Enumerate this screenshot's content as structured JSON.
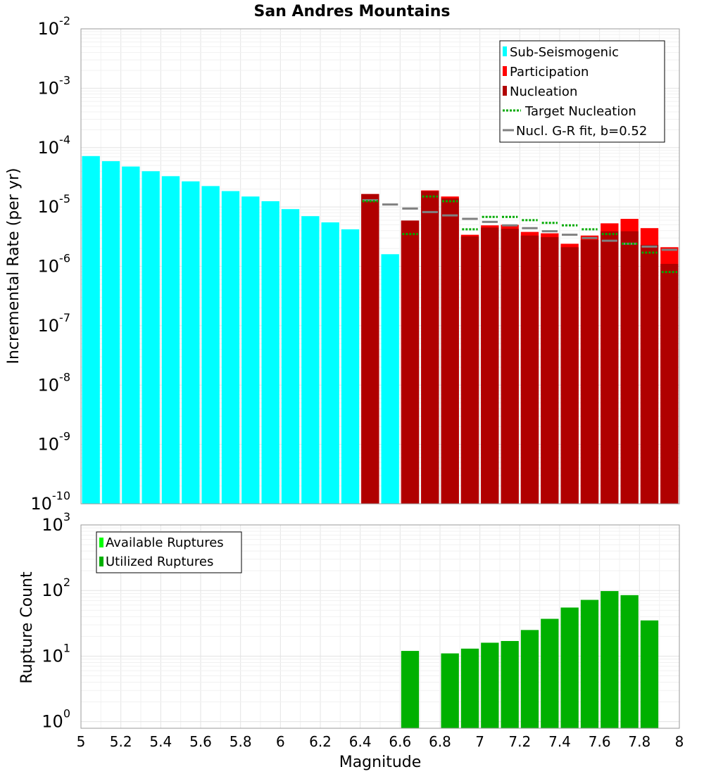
{
  "title": "San Andres Mountains",
  "colors": {
    "sub": "#00ffff",
    "participation": "#ff0000",
    "nucleation": "#b00000",
    "target": "#00aa00",
    "fit": "#808080",
    "available": "#00ff00",
    "utilized": "#00b000"
  },
  "chart_data": [
    {
      "type": "bar",
      "name": "mfd",
      "title": "San Andres Mountains",
      "xlabel": "Magnitude",
      "ylabel": "Incremental Rate (per yr)",
      "xlim": [
        5,
        8
      ],
      "ylim_exp": [
        -10,
        -2
      ],
      "ytick_exps": [
        -10,
        -9,
        -8,
        -7,
        -6,
        -5,
        -4,
        -3,
        -2
      ],
      "bin_width": 0.1,
      "legend": {
        "position": "top-right",
        "entries": [
          {
            "key": "sub",
            "label": "Sub-Seismogenic",
            "style": "bar"
          },
          {
            "key": "participation",
            "label": "Participation",
            "style": "bar"
          },
          {
            "key": "nucleation",
            "label": "Nucleation",
            "style": "bar"
          },
          {
            "key": "target",
            "label": "Target Nucleation",
            "style": "dotted"
          },
          {
            "key": "fit",
            "label": "Nucl. G-R fit, b=0.52",
            "style": "line"
          }
        ]
      },
      "sub_seismogenic": {
        "x": [
          5.05,
          5.15,
          5.25,
          5.35,
          5.45,
          5.55,
          5.65,
          5.75,
          5.85,
          5.95,
          6.05,
          6.15,
          6.25,
          6.35,
          6.55
        ],
        "values": [
          7.2e-05,
          5.9e-05,
          4.8e-05,
          4e-05,
          3.3e-05,
          2.7e-05,
          2.25e-05,
          1.85e-05,
          1.5e-05,
          1.25e-05,
          9.2e-06,
          7e-06,
          5.5e-06,
          4.2e-06,
          1.6e-06
        ]
      },
      "participation": {
        "x": [
          6.45,
          6.65,
          6.75,
          6.85,
          6.95,
          7.05,
          7.15,
          7.25,
          7.35,
          7.45,
          7.55,
          7.65,
          7.75,
          7.85,
          7.95
        ],
        "values": [
          1.65e-05,
          5.9e-06,
          1.9e-05,
          1.5e-05,
          3.4e-06,
          4.9e-06,
          5e-06,
          3.8e-06,
          3.6e-06,
          2.4e-06,
          3.3e-06,
          5.3e-06,
          6.3e-06,
          4.4e-06,
          2.1e-06
        ]
      },
      "nucleation": {
        "x": [
          6.45,
          6.65,
          6.75,
          6.85,
          6.95,
          7.05,
          7.15,
          7.25,
          7.35,
          7.45,
          7.55,
          7.65,
          7.75,
          7.85,
          7.95
        ],
        "values": [
          1.65e-05,
          5.9e-06,
          1.85e-05,
          1.4e-05,
          3.2e-06,
          4.5e-06,
          4.3e-06,
          3.3e-06,
          3.1e-06,
          2.1e-06,
          2.8e-06,
          3.9e-06,
          3.9e-06,
          2.3e-06,
          1.1e-06
        ]
      },
      "target_nucleation": {
        "x": [
          6.45,
          6.65,
          6.75,
          6.85,
          6.95,
          7.05,
          7.15,
          7.25,
          7.35,
          7.45,
          7.55,
          7.65,
          7.75,
          7.85,
          7.95
        ],
        "values": [
          1.25e-05,
          3.5e-06,
          1.5e-05,
          1.25e-05,
          4.2e-06,
          6.8e-06,
          6.8e-06,
          6e-06,
          5.4e-06,
          4.9e-06,
          4.2e-06,
          3.5e-06,
          2.4e-06,
          1.7e-06,
          8e-07
        ]
      },
      "gr_fit": {
        "x": [
          6.45,
          6.55,
          6.65,
          6.75,
          6.85,
          6.95,
          7.05,
          7.15,
          7.25,
          7.35,
          7.45,
          7.55,
          7.65,
          7.75,
          7.85,
          7.95
        ],
        "values": [
          1.3e-05,
          1.1e-05,
          9.4e-06,
          8.2e-06,
          7.2e-06,
          6.3e-06,
          5.6e-06,
          4.9e-06,
          4.4e-06,
          3.9e-06,
          3.4e-06,
          3e-06,
          2.7e-06,
          2.4e-06,
          2.15e-06,
          1.9e-06
        ]
      }
    },
    {
      "type": "bar",
      "name": "ruptures",
      "xlabel": "Magnitude",
      "ylabel": "Rupture Count",
      "xlim": [
        5,
        8
      ],
      "ylim_exp": [
        -0.1,
        3
      ],
      "ytick_exps": [
        0,
        1,
        2,
        3
      ],
      "xticks": [
        5,
        5.2,
        5.4,
        5.6,
        5.8,
        6,
        6.2,
        6.4,
        6.6,
        6.8,
        7,
        7.2,
        7.4,
        7.6,
        7.8,
        8
      ],
      "xtick_labels": [
        "5",
        "5.2",
        "5.4",
        "5.6",
        "5.8",
        "6",
        "6.2",
        "6.4",
        "6.6",
        "6.8",
        "7",
        "7.2",
        "7.4",
        "7.6",
        "7.8",
        "8"
      ],
      "legend": {
        "position": "top-left",
        "entries": [
          {
            "key": "available",
            "label": "Available Ruptures",
            "style": "bar"
          },
          {
            "key": "utilized",
            "label": "Utilized Ruptures",
            "style": "bar"
          }
        ]
      },
      "utilized": {
        "x": [
          6.65,
          6.85,
          6.95,
          7.05,
          7.15,
          7.25,
          7.35,
          7.45,
          7.55,
          7.65,
          7.75,
          7.85
        ],
        "values": [
          12,
          11,
          13,
          16,
          17,
          25,
          37,
          55,
          72,
          98,
          85,
          35
        ]
      }
    }
  ]
}
